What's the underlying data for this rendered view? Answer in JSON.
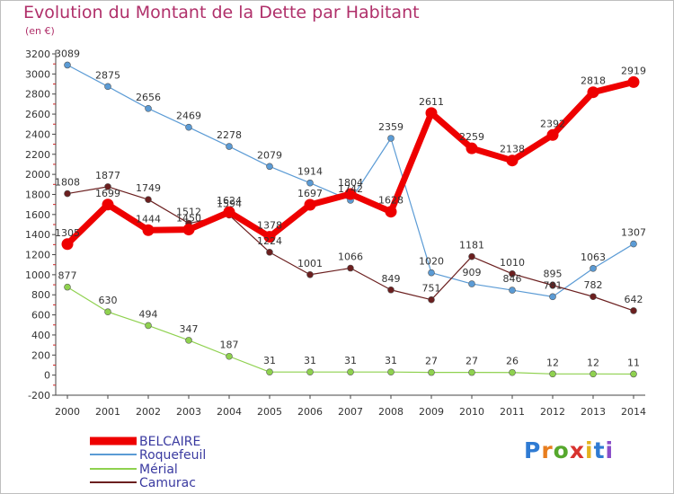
{
  "title": "Evolution du Montant de la Dette par Habitant",
  "subtitle": "(en €)",
  "logo": {
    "text": "Proxiti"
  },
  "chart_data": {
    "type": "line",
    "title": "Evolution du Montant de la Dette par Habitant",
    "ylabel": "(en €)",
    "xlabel": "",
    "ylim": [
      -200,
      3200
    ],
    "y_ticks": [
      -200,
      0,
      200,
      400,
      600,
      800,
      1000,
      1200,
      1400,
      1600,
      1800,
      2000,
      2200,
      2400,
      2600,
      2800,
      3000,
      3200
    ],
    "categories": [
      "2000",
      "2001",
      "2002",
      "2003",
      "2004",
      "2005",
      "2006",
      "2007",
      "2008",
      "2009",
      "2010",
      "2011",
      "2012",
      "2013",
      "2014"
    ],
    "grid": false,
    "legend_position": "bottom-left",
    "series": [
      {
        "name": "BELCAIRE",
        "color": "#ee0000",
        "values": [
          1305,
          1699,
          1444,
          1450,
          1624,
          1378,
          1697,
          1804,
          1628,
          2611,
          2259,
          2138,
          2392,
          2818,
          2919
        ]
      },
      {
        "name": "Roquefeuil",
        "color": "#5b9bd5",
        "values": [
          3089,
          2875,
          2656,
          2469,
          2278,
          2079,
          1914,
          1742,
          2359,
          1020,
          909,
          846,
          781,
          1063,
          1307
        ]
      },
      {
        "name": "Mérial",
        "color": "#8fd14f",
        "values": [
          877,
          630,
          494,
          347,
          187,
          31,
          31,
          31,
          31,
          27,
          27,
          26,
          12,
          12,
          11
        ]
      },
      {
        "name": "Camurac",
        "color": "#6b1f1f",
        "values": [
          1808,
          1877,
          1749,
          1512,
          1594,
          1224,
          1001,
          1066,
          849,
          751,
          1181,
          1010,
          895,
          782,
          642
        ]
      }
    ]
  }
}
